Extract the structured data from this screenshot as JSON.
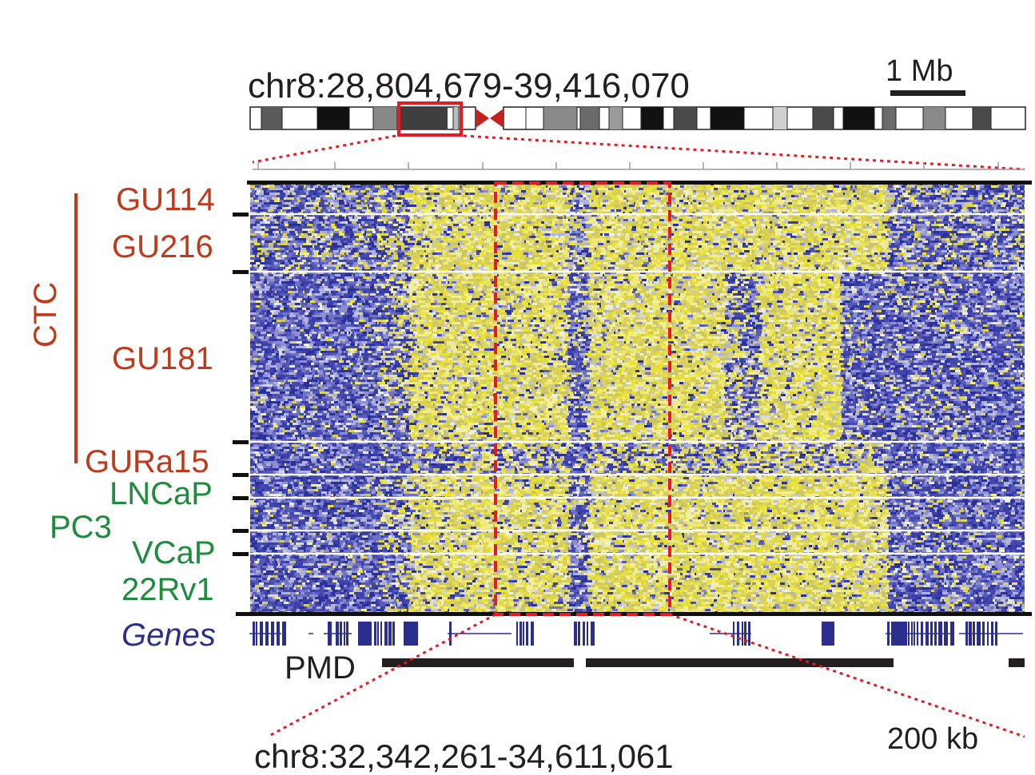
{
  "colors": {
    "ctc": "#c0391b",
    "cell_line": "#1e8c3c",
    "genes": "#2b2e8c",
    "hypo": "#2e2f9b",
    "hyper": "#e8e23a",
    "highlight": "#e31b23",
    "black": "#231f20"
  },
  "top": {
    "region": "chr8:28,804,679-39,416,070",
    "scale": "1 Mb"
  },
  "bottom": {
    "region": "chr8:32,342,261-34,611,061",
    "scale": "200 kb"
  },
  "group": {
    "label": "CTC"
  },
  "samples": [
    {
      "name": "GU114",
      "type": "ctc"
    },
    {
      "name": "GU216",
      "type": "ctc"
    },
    {
      "name": "GU181",
      "type": "ctc"
    },
    {
      "name": "GURa15",
      "type": "ctc"
    },
    {
      "name": "LNCaP",
      "type": "cell_line"
    },
    {
      "name": "PC3",
      "type": "cell_line"
    },
    {
      "name": "VCaP",
      "type": "cell_line"
    },
    {
      "name": "22Rv1",
      "type": "cell_line"
    }
  ],
  "tracks": {
    "genes": "Genes",
    "pmd": "PMD"
  },
  "icons": {
    "ideogram": "chromosome-ideogram-icon",
    "centromere": "centromere-icon"
  }
}
